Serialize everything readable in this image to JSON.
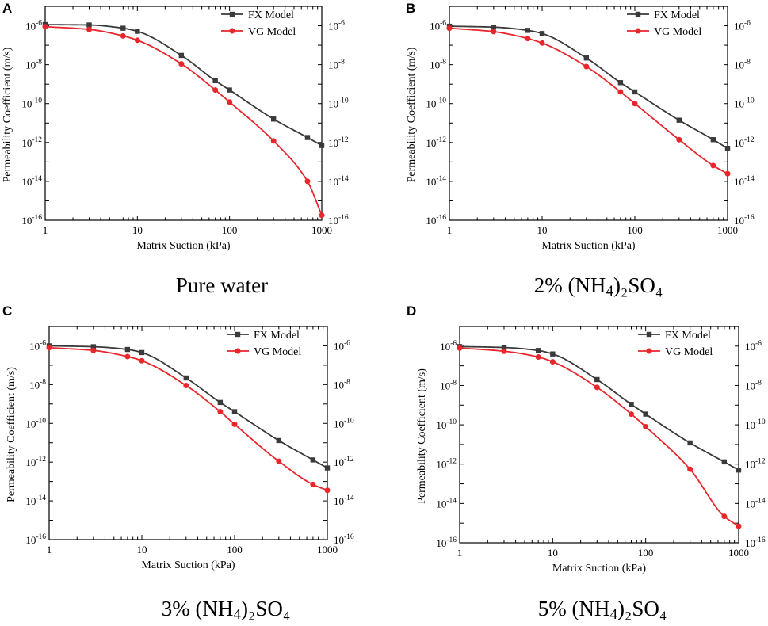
{
  "chart_data": [
    {
      "type": "line",
      "panel_label": "A",
      "caption": {
        "pre": "Pure water",
        "sub": "",
        "post": ""
      },
      "xlabel": "Matrix Suction (kPa)",
      "ylabel": "Permeability Coefficient (m/s)",
      "xscale": "log",
      "yscale": "log",
      "xlim": [
        1,
        1000
      ],
      "ylim": [
        1e-16,
        1e-05
      ],
      "x_ticks": [
        "1",
        "10",
        "100",
        "1000"
      ],
      "y_tick_exponents": [
        "-6",
        "-8",
        "-10",
        "-12",
        "-14",
        "-16"
      ],
      "legend_position": "top-right",
      "series": [
        {
          "name": "FX Model",
          "color": "#3a3a3a",
          "marker": "square",
          "x": [
            1,
            3,
            7,
            10,
            30,
            70,
            100,
            300,
            700,
            1000
          ],
          "y": [
            1.15e-06,
            1.1e-06,
            7.5e-07,
            5.2e-07,
            3e-08,
            1.5e-09,
            5e-10,
            1.6e-11,
            1.8e-12,
            7e-13
          ]
        },
        {
          "name": "VG Model",
          "color": "#e8262b",
          "marker": "circle",
          "x": [
            1,
            3,
            7,
            10,
            30,
            70,
            100,
            300,
            700,
            1000
          ],
          "y": [
            9e-07,
            6.5e-07,
            3e-07,
            1.8e-07,
            1.1e-08,
            5e-10,
            1.2e-10,
            1.2e-12,
            1e-14,
            1.8e-16
          ]
        }
      ]
    },
    {
      "type": "line",
      "panel_label": "B",
      "caption": {
        "pre": "2% (NH",
        "sub": "4",
        "post": ")₂SO₄"
      },
      "xlabel": "Matrix Suction (kPa)",
      "ylabel": "Permeability Coefficient (m/s)",
      "xscale": "log",
      "yscale": "log",
      "xlim": [
        1,
        1000
      ],
      "ylim": [
        1e-16,
        1e-05
      ],
      "x_ticks": [
        "1",
        "10",
        "100",
        "1000"
      ],
      "y_tick_exponents": [
        "-6",
        "-8",
        "-10",
        "-12",
        "-14",
        "-16"
      ],
      "legend_position": "top-right",
      "series": [
        {
          "name": "FX Model",
          "color": "#3a3a3a",
          "marker": "square",
          "x": [
            1,
            3,
            7,
            10,
            30,
            70,
            100,
            300,
            700,
            1000
          ],
          "y": [
            9.5e-07,
            8.5e-07,
            5.8e-07,
            4e-07,
            2.2e-08,
            1.2e-09,
            4e-10,
            1.4e-11,
            1.4e-12,
            5e-13
          ]
        },
        {
          "name": "VG Model",
          "color": "#e8262b",
          "marker": "circle",
          "x": [
            1,
            3,
            7,
            10,
            30,
            70,
            100,
            300,
            700,
            1000
          ],
          "y": [
            7.5e-07,
            5e-07,
            2.2e-07,
            1.3e-07,
            8e-09,
            4e-10,
            1e-10,
            1.4e-12,
            6.5e-14,
            2.5e-14
          ]
        }
      ]
    },
    {
      "type": "line",
      "panel_label": "C",
      "caption": {
        "pre": "3% (NH",
        "sub": "4",
        "post": ")₂SO₄"
      },
      "xlabel": "Matrix Suction (kPa)",
      "ylabel": "Permeability Coefficient (m/s)",
      "xscale": "log",
      "yscale": "log",
      "xlim": [
        1,
        1000
      ],
      "ylim": [
        1e-16,
        1e-05
      ],
      "x_ticks": [
        "1",
        "10",
        "100",
        "1000"
      ],
      "y_tick_exponents": [
        "-6",
        "-8",
        "-10",
        "-12",
        "-14",
        "-16"
      ],
      "legend_position": "top-right",
      "series": [
        {
          "name": "FX Model",
          "color": "#3a3a3a",
          "marker": "square",
          "x": [
            1,
            3,
            7,
            10,
            30,
            70,
            100,
            300,
            700,
            1000
          ],
          "y": [
            1e-06,
            9e-07,
            6.5e-07,
            4.5e-07,
            2.2e-08,
            1.2e-09,
            4e-10,
            1.3e-11,
            1.3e-12,
            5e-13
          ]
        },
        {
          "name": "VG Model",
          "color": "#e8262b",
          "marker": "circle",
          "x": [
            1,
            3,
            7,
            10,
            30,
            70,
            100,
            300,
            700,
            1000
          ],
          "y": [
            8e-07,
            5.8e-07,
            2.8e-07,
            1.7e-07,
            9e-09,
            4e-10,
            9e-11,
            1.1e-12,
            7e-14,
            3.5e-14
          ]
        }
      ]
    },
    {
      "type": "line",
      "panel_label": "D",
      "caption": {
        "pre": "5% (NH",
        "sub": "4",
        "post": ")₂SO₄"
      },
      "xlabel": "Matrix Suction (kPa)",
      "ylabel": "Permeability Coefficient (m/s)",
      "xscale": "log",
      "yscale": "log",
      "xlim": [
        1,
        1000
      ],
      "ylim": [
        1e-16,
        1e-05
      ],
      "x_ticks": [
        "1",
        "10",
        "100",
        "1000"
      ],
      "y_tick_exponents": [
        "-6",
        "-8",
        "-10",
        "-12",
        "-14",
        "-16"
      ],
      "legend_position": "top-right",
      "series": [
        {
          "name": "FX Model",
          "color": "#3a3a3a",
          "marker": "square",
          "x": [
            1,
            3,
            7,
            10,
            30,
            70,
            100,
            300,
            700,
            1000
          ],
          "y": [
            9.5e-07,
            8.5e-07,
            6e-07,
            4e-07,
            2e-08,
            1.1e-09,
            3.5e-10,
            1.2e-11,
            1.3e-12,
            5e-13
          ]
        },
        {
          "name": "VG Model",
          "color": "#e8262b",
          "marker": "circle",
          "x": [
            1,
            3,
            7,
            10,
            30,
            70,
            100,
            300,
            700,
            1000
          ],
          "y": [
            8e-07,
            5.5e-07,
            2.8e-07,
            1.6e-07,
            8e-09,
            3.5e-10,
            8e-11,
            5.5e-13,
            2.2e-15,
            7e-16
          ]
        }
      ]
    }
  ]
}
